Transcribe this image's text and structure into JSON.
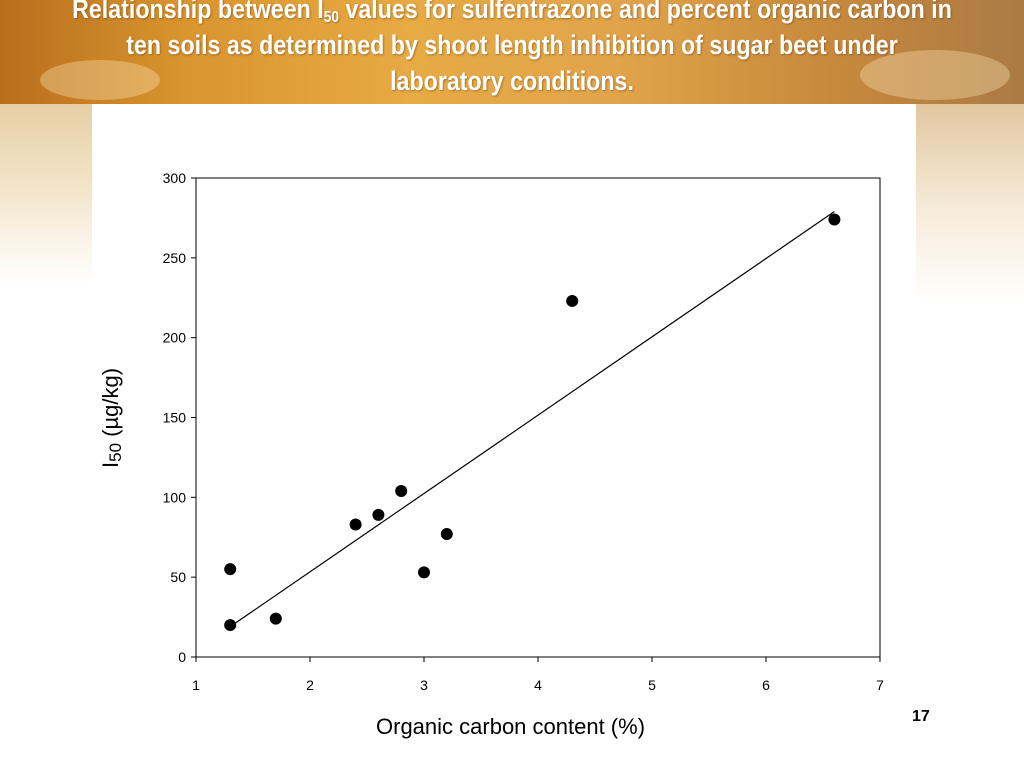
{
  "slide": {
    "title_part1": "Relationship between I",
    "title_sub": "50",
    "title_part2": " values for sulfentrazone and percent organic carbon in ten soils as determined by shoot length inhibition of sugar beet under laboratory conditions.",
    "page_number": "17"
  },
  "chart_data": {
    "type": "scatter",
    "xlabel": "Organic carbon content (%)",
    "ylabel_main": "I",
    "ylabel_sub": "50",
    "ylabel_rest": " (µg/kg)",
    "xlim": [
      1,
      7
    ],
    "ylim": [
      0,
      300
    ],
    "x_ticks": [
      1,
      2,
      3,
      4,
      5,
      6,
      7
    ],
    "y_ticks": [
      0,
      50,
      100,
      150,
      200,
      250,
      300
    ],
    "grid": false,
    "points": [
      {
        "x": 1.3,
        "y": 20
      },
      {
        "x": 1.3,
        "y": 55
      },
      {
        "x": 1.7,
        "y": 24
      },
      {
        "x": 2.4,
        "y": 83
      },
      {
        "x": 2.6,
        "y": 89
      },
      {
        "x": 2.8,
        "y": 104
      },
      {
        "x": 3.0,
        "y": 53
      },
      {
        "x": 3.2,
        "y": 77
      },
      {
        "x": 4.3,
        "y": 223
      },
      {
        "x": 6.6,
        "y": 274
      }
    ],
    "trendline": [
      {
        "x": 1.3,
        "y": 19
      },
      {
        "x": 6.6,
        "y": 279
      }
    ],
    "colors": {
      "marker": "#000000",
      "line": "#000000",
      "banner": "#d9952f"
    }
  }
}
